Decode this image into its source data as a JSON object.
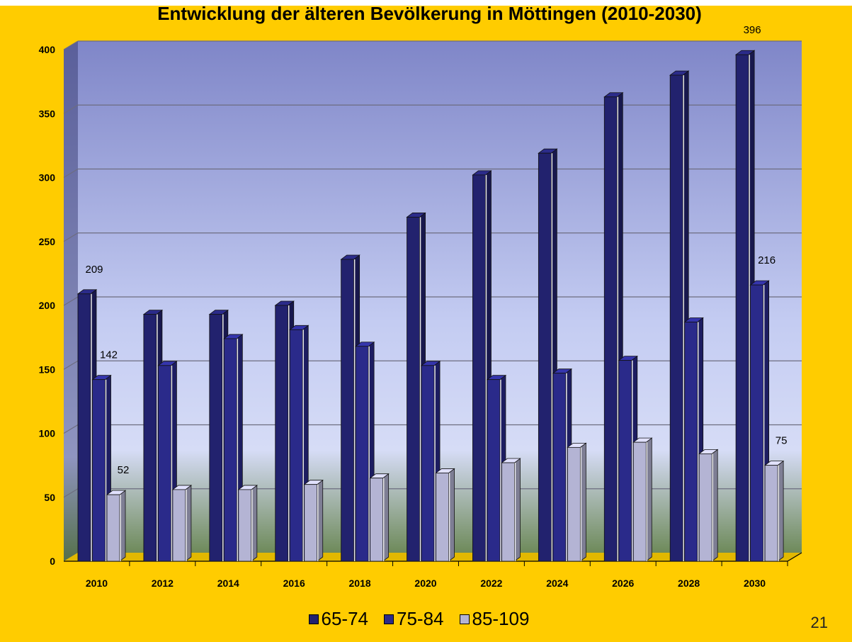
{
  "page_number": "21",
  "chart_data": {
    "type": "bar",
    "title": "Entwicklung der älteren Bevölkerung in Möttingen (2010-2030)",
    "categories": [
      "2010",
      "2012",
      "2014",
      "2016",
      "2018",
      "2020",
      "2022",
      "2024",
      "2026",
      "2028",
      "2030"
    ],
    "series": [
      {
        "name": "65-74",
        "values": [
          209,
          193,
          193,
          200,
          236,
          269,
          302,
          319,
          363,
          380,
          396
        ],
        "color": "#22226e"
      },
      {
        "name": "75-84",
        "values": [
          142,
          153,
          174,
          181,
          168,
          153,
          142,
          147,
          157,
          187,
          216
        ],
        "color": "#2a2a8a"
      },
      {
        "name": "85-109",
        "values": [
          52,
          56,
          56,
          60,
          65,
          69,
          77,
          89,
          93,
          84,
          75
        ],
        "color": "#b4b4d4"
      }
    ],
    "data_labels": [
      {
        "series": 0,
        "category": 0,
        "text": "209"
      },
      {
        "series": 1,
        "category": 0,
        "text": "142"
      },
      {
        "series": 2,
        "category": 0,
        "text": "52"
      },
      {
        "series": 0,
        "category": 10,
        "text": "396"
      },
      {
        "series": 1,
        "category": 10,
        "text": "216"
      },
      {
        "series": 2,
        "category": 10,
        "text": "75"
      }
    ],
    "ylim": [
      0,
      400
    ],
    "yticks": [
      "0",
      "50",
      "100",
      "150",
      "200",
      "250",
      "300",
      "350",
      "400"
    ],
    "grid": true,
    "legend_position": "bottom",
    "colors": {
      "background": "#ffcc00",
      "wall_top": "#7f86c8",
      "wall_bottom": "#d6dcf6",
      "floor": "#6e8a5a"
    }
  }
}
